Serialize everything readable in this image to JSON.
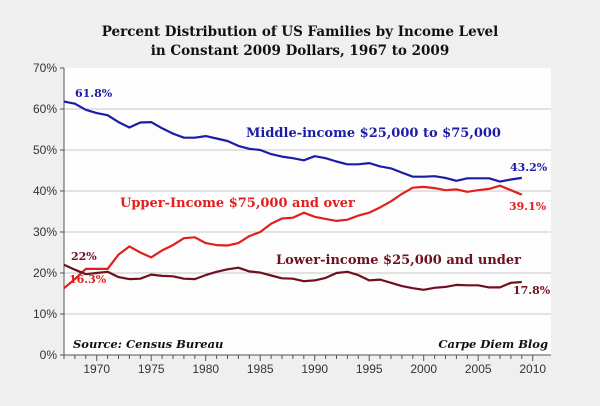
{
  "chart_data": {
    "type": "line",
    "title": [
      "Percent Distribution of US Families by Income Level",
      "in Constant 2009 Dollars, 1967 to 2009"
    ],
    "xlim": [
      1967,
      2010
    ],
    "ylim": [
      0,
      70
    ],
    "x_ticks": [
      1970,
      1975,
      1980,
      1985,
      1990,
      1995,
      2000,
      2005,
      2010
    ],
    "y_ticks": [
      "0%",
      "10%",
      "20%",
      "30%",
      "40%",
      "50%",
      "60%",
      "70%"
    ],
    "y_tick_values": [
      0,
      10,
      20,
      30,
      40,
      50,
      60,
      70
    ],
    "grid": "horizontal",
    "x": [
      1967,
      1968,
      1969,
      1970,
      1971,
      1972,
      1973,
      1974,
      1975,
      1976,
      1977,
      1978,
      1979,
      1980,
      1981,
      1982,
      1983,
      1984,
      1985,
      1986,
      1987,
      1988,
      1989,
      1990,
      1991,
      1992,
      1993,
      1994,
      1995,
      1996,
      1997,
      1998,
      1999,
      2000,
      2001,
      2002,
      2003,
      2004,
      2005,
      2006,
      2007,
      2008,
      2009
    ],
    "series": [
      {
        "name": "Middle-income $25,000 to $75,000",
        "color": "#1c1ca6",
        "values": [
          61.8,
          61.3,
          59.8,
          59,
          58.5,
          56.8,
          55.5,
          56.7,
          56.8,
          55.3,
          54,
          53,
          53,
          53.4,
          52.8,
          52.2,
          51,
          50.3,
          50,
          49,
          48.4,
          48,
          47.5,
          48.5,
          48,
          47.2,
          46.5,
          46.5,
          46.8,
          46,
          45.5,
          44.5,
          43.5,
          43.5,
          43.6,
          43.2,
          42.5,
          43.1,
          43.1,
          43.1,
          42.3,
          42.8,
          43.2
        ],
        "start_label": "61.8%",
        "end_label": "43.2%"
      },
      {
        "name": "Upper-Income $75,000 and over",
        "color": "#e0201e",
        "values": [
          16.3,
          18.5,
          21,
          21,
          21,
          24.5,
          26.5,
          25,
          23.8,
          25.5,
          26.8,
          28.5,
          28.7,
          27.3,
          26.8,
          26.7,
          27.3,
          29,
          30,
          32,
          33.3,
          33.5,
          34.7,
          33.7,
          33.2,
          32.7,
          33,
          34,
          34.7,
          36,
          37.5,
          39.3,
          40.8,
          41,
          40.7,
          40.2,
          40.4,
          39.8,
          40.2,
          40.5,
          41.3,
          40.2,
          39.1
        ],
        "start_label": "16.3%",
        "end_label": "39.1%"
      },
      {
        "name": "Lower-income $25,000 and under",
        "color": "#6e1020",
        "values": [
          22,
          20.8,
          19.7,
          20,
          20.3,
          19,
          18.5,
          18.6,
          19.6,
          19.3,
          19.2,
          18.6,
          18.5,
          19.5,
          20.3,
          20.9,
          21.3,
          20.4,
          20.1,
          19.4,
          18.7,
          18.6,
          18,
          18.2,
          18.8,
          20,
          20.3,
          19.5,
          18.2,
          18.4,
          17.6,
          16.8,
          16.3,
          15.9,
          16.4,
          16.6,
          17.1,
          17,
          17,
          16.5,
          16.5,
          17.6,
          17.8
        ],
        "start_label": "22%",
        "end_label": "17.8%"
      }
    ],
    "annotations": {
      "source": "Source: Census Bureau",
      "credit": "Carpe Diem Blog"
    }
  }
}
